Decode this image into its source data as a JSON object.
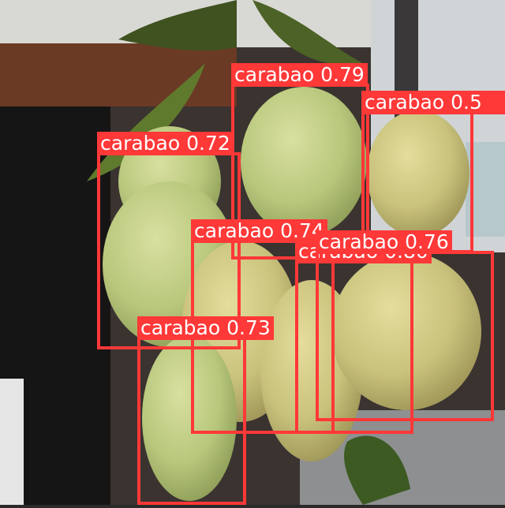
{
  "detections": [
    {
      "label": "carabao 0.72"
    },
    {
      "label": "carabao 0.79"
    },
    {
      "label": "carabao 0.5"
    },
    {
      "label": "carabao 0.74"
    },
    {
      "label": "carabao 0.80"
    },
    {
      "label": "carabao 0.76"
    },
    {
      "label": "carabao 0.73"
    }
  ],
  "colors": {
    "box": "#ff3838",
    "label_text": "#ffffff"
  }
}
